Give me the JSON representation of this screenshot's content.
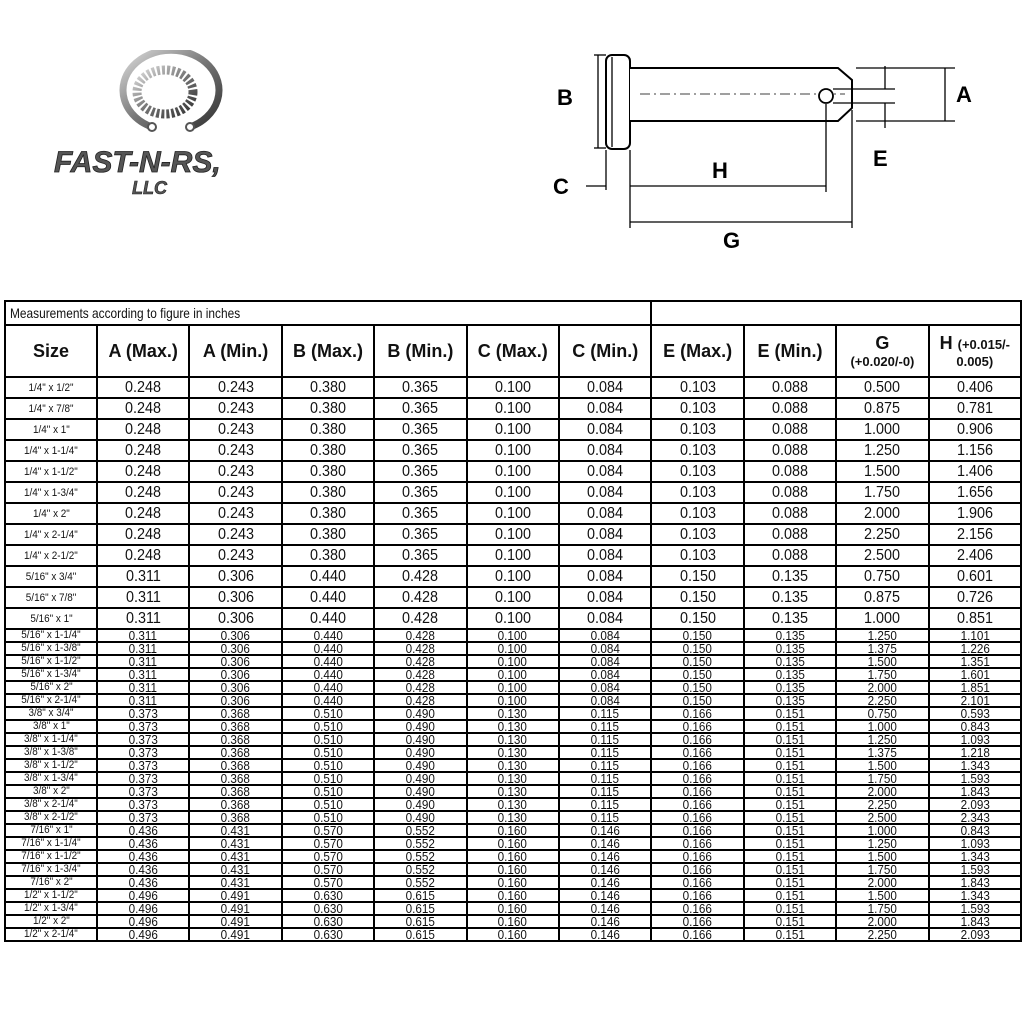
{
  "logo": {
    "text": "FAST-N-RS, LLC",
    "line1": "FAST-N-RS,",
    "line2": "LLC"
  },
  "diagram": {
    "labels": {
      "A": "A",
      "B": "B",
      "C": "C",
      "E": "E",
      "G": "G",
      "H": "H"
    }
  },
  "table": {
    "caption": "Measurements according to figure in inches",
    "headers": [
      {
        "main": "Size"
      },
      {
        "main": "A (Max.)"
      },
      {
        "main": "A (Min.)"
      },
      {
        "main": "B (Max.)"
      },
      {
        "main": "B (Min.)"
      },
      {
        "main": "C (Max.)"
      },
      {
        "main": "C (Min.)"
      },
      {
        "main": "E (Max.)"
      },
      {
        "main": "E (Min.)"
      },
      {
        "main": "G",
        "sub": "(+0.020/-0)"
      },
      {
        "main": "H",
        "sub1": "(+0.015/-",
        "sub": "0.005)"
      }
    ],
    "rows": [
      [
        "1/4\" x 1/2\"",
        "0.248",
        "0.243",
        "0.380",
        "0.365",
        "0.100",
        "0.084",
        "0.103",
        "0.088",
        "0.500",
        "0.406"
      ],
      [
        "1/4\" x 7/8\"",
        "0.248",
        "0.243",
        "0.380",
        "0.365",
        "0.100",
        "0.084",
        "0.103",
        "0.088",
        "0.875",
        "0.781"
      ],
      [
        "1/4\" x 1\"",
        "0.248",
        "0.243",
        "0.380",
        "0.365",
        "0.100",
        "0.084",
        "0.103",
        "0.088",
        "1.000",
        "0.906"
      ],
      [
        "1/4\" x 1-1/4\"",
        "0.248",
        "0.243",
        "0.380",
        "0.365",
        "0.100",
        "0.084",
        "0.103",
        "0.088",
        "1.250",
        "1.156"
      ],
      [
        "1/4\" x 1-1/2\"",
        "0.248",
        "0.243",
        "0.380",
        "0.365",
        "0.100",
        "0.084",
        "0.103",
        "0.088",
        "1.500",
        "1.406"
      ],
      [
        "1/4\" x 1-3/4\"",
        "0.248",
        "0.243",
        "0.380",
        "0.365",
        "0.100",
        "0.084",
        "0.103",
        "0.088",
        "1.750",
        "1.656"
      ],
      [
        "1/4\" x 2\"",
        "0.248",
        "0.243",
        "0.380",
        "0.365",
        "0.100",
        "0.084",
        "0.103",
        "0.088",
        "2.000",
        "1.906"
      ],
      [
        "1/4\" x 2-1/4\"",
        "0.248",
        "0.243",
        "0.380",
        "0.365",
        "0.100",
        "0.084",
        "0.103",
        "0.088",
        "2.250",
        "2.156"
      ],
      [
        "1/4\" x 2-1/2\"",
        "0.248",
        "0.243",
        "0.380",
        "0.365",
        "0.100",
        "0.084",
        "0.103",
        "0.088",
        "2.500",
        "2.406"
      ],
      [
        "5/16\" x 3/4\"",
        "0.311",
        "0.306",
        "0.440",
        "0.428",
        "0.100",
        "0.084",
        "0.150",
        "0.135",
        "0.750",
        "0.601"
      ],
      [
        "5/16\" x 7/8\"",
        "0.311",
        "0.306",
        "0.440",
        "0.428",
        "0.100",
        "0.084",
        "0.150",
        "0.135",
        "0.875",
        "0.726"
      ],
      [
        "5/16\" x 1\"",
        "0.311",
        "0.306",
        "0.440",
        "0.428",
        "0.100",
        "0.084",
        "0.150",
        "0.135",
        "1.000",
        "0.851"
      ],
      [
        "5/16\" x 1-1/4\"",
        "0.311",
        "0.306",
        "0.440",
        "0.428",
        "0.100",
        "0.084",
        "0.150",
        "0.135",
        "1.250",
        "1.101"
      ],
      [
        "5/16\" x 1-3/8\"",
        "0.311",
        "0.306",
        "0.440",
        "0.428",
        "0.100",
        "0.084",
        "0.150",
        "0.135",
        "1.375",
        "1.226"
      ],
      [
        "5/16\" x 1-1/2\"",
        "0.311",
        "0.306",
        "0.440",
        "0.428",
        "0.100",
        "0.084",
        "0.150",
        "0.135",
        "1.500",
        "1.351"
      ],
      [
        "5/16\" x 1-3/4\"",
        "0.311",
        "0.306",
        "0.440",
        "0.428",
        "0.100",
        "0.084",
        "0.150",
        "0.135",
        "1.750",
        "1.601"
      ],
      [
        "5/16\" x 2\"",
        "0.311",
        "0.306",
        "0.440",
        "0.428",
        "0.100",
        "0.084",
        "0.150",
        "0.135",
        "2.000",
        "1.851"
      ],
      [
        "5/16\" x 2-1/4\"",
        "0.311",
        "0.306",
        "0.440",
        "0.428",
        "0.100",
        "0.084",
        "0.150",
        "0.135",
        "2.250",
        "2.101"
      ],
      [
        "3/8\" x 3/4\"",
        "0.373",
        "0.368",
        "0.510",
        "0.490",
        "0.130",
        "0.115",
        "0.166",
        "0.151",
        "0.750",
        "0.593"
      ],
      [
        "3/8\" x 1\"",
        "0.373",
        "0.368",
        "0.510",
        "0.490",
        "0.130",
        "0.115",
        "0.166",
        "0.151",
        "1.000",
        "0.843"
      ],
      [
        "3/8\" x 1-1/4\"",
        "0.373",
        "0.368",
        "0.510",
        "0.490",
        "0.130",
        "0.115",
        "0.166",
        "0.151",
        "1.250",
        "1.093"
      ],
      [
        "3/8\" x 1-3/8\"",
        "0.373",
        "0.368",
        "0.510",
        "0.490",
        "0.130",
        "0.115",
        "0.166",
        "0.151",
        "1.375",
        "1.218"
      ],
      [
        "3/8\" x 1-1/2\"",
        "0.373",
        "0.368",
        "0.510",
        "0.490",
        "0.130",
        "0.115",
        "0.166",
        "0.151",
        "1.500",
        "1.343"
      ],
      [
        "3/8\" x 1-3/4\"",
        "0.373",
        "0.368",
        "0.510",
        "0.490",
        "0.130",
        "0.115",
        "0.166",
        "0.151",
        "1.750",
        "1.593"
      ],
      [
        "3/8\" x 2\"",
        "0.373",
        "0.368",
        "0.510",
        "0.490",
        "0.130",
        "0.115",
        "0.166",
        "0.151",
        "2.000",
        "1.843"
      ],
      [
        "3/8\" x 2-1/4\"",
        "0.373",
        "0.368",
        "0.510",
        "0.490",
        "0.130",
        "0.115",
        "0.166",
        "0.151",
        "2.250",
        "2.093"
      ],
      [
        "3/8\" x 2-1/2\"",
        "0.373",
        "0.368",
        "0.510",
        "0.490",
        "0.130",
        "0.115",
        "0.166",
        "0.151",
        "2.500",
        "2.343"
      ],
      [
        "7/16\" x 1\"",
        "0.436",
        "0.431",
        "0.570",
        "0.552",
        "0.160",
        "0.146",
        "0.166",
        "0.151",
        "1.000",
        "0.843"
      ],
      [
        "7/16\" x 1-1/4\"",
        "0.436",
        "0.431",
        "0.570",
        "0.552",
        "0.160",
        "0.146",
        "0.166",
        "0.151",
        "1.250",
        "1.093"
      ],
      [
        "7/16\" x 1-1/2\"",
        "0.436",
        "0.431",
        "0.570",
        "0.552",
        "0.160",
        "0.146",
        "0.166",
        "0.151",
        "1.500",
        "1.343"
      ],
      [
        "7/16\" x 1-3/4\"",
        "0.436",
        "0.431",
        "0.570",
        "0.552",
        "0.160",
        "0.146",
        "0.166",
        "0.151",
        "1.750",
        "1.593"
      ],
      [
        "7/16\" x 2\"",
        "0.436",
        "0.431",
        "0.570",
        "0.552",
        "0.160",
        "0.146",
        "0.166",
        "0.151",
        "2.000",
        "1.843"
      ],
      [
        "1/2\" x 1-1/2\"",
        "0.496",
        "0.491",
        "0.630",
        "0.615",
        "0.160",
        "0.146",
        "0.166",
        "0.151",
        "1.500",
        "1.343"
      ],
      [
        "1/2\" x 1-3/4\"",
        "0.496",
        "0.491",
        "0.630",
        "0.615",
        "0.160",
        "0.146",
        "0.166",
        "0.151",
        "1.750",
        "1.593"
      ],
      [
        "1/2\" x 2\"",
        "0.496",
        "0.491",
        "0.630",
        "0.615",
        "0.160",
        "0.146",
        "0.166",
        "0.151",
        "2.000",
        "1.843"
      ],
      [
        "1/2\" x 2-1/4\"",
        "0.496",
        "0.491",
        "0.630",
        "0.615",
        "0.160",
        "0.146",
        "0.166",
        "0.151",
        "2.250",
        "2.093"
      ]
    ]
  }
}
